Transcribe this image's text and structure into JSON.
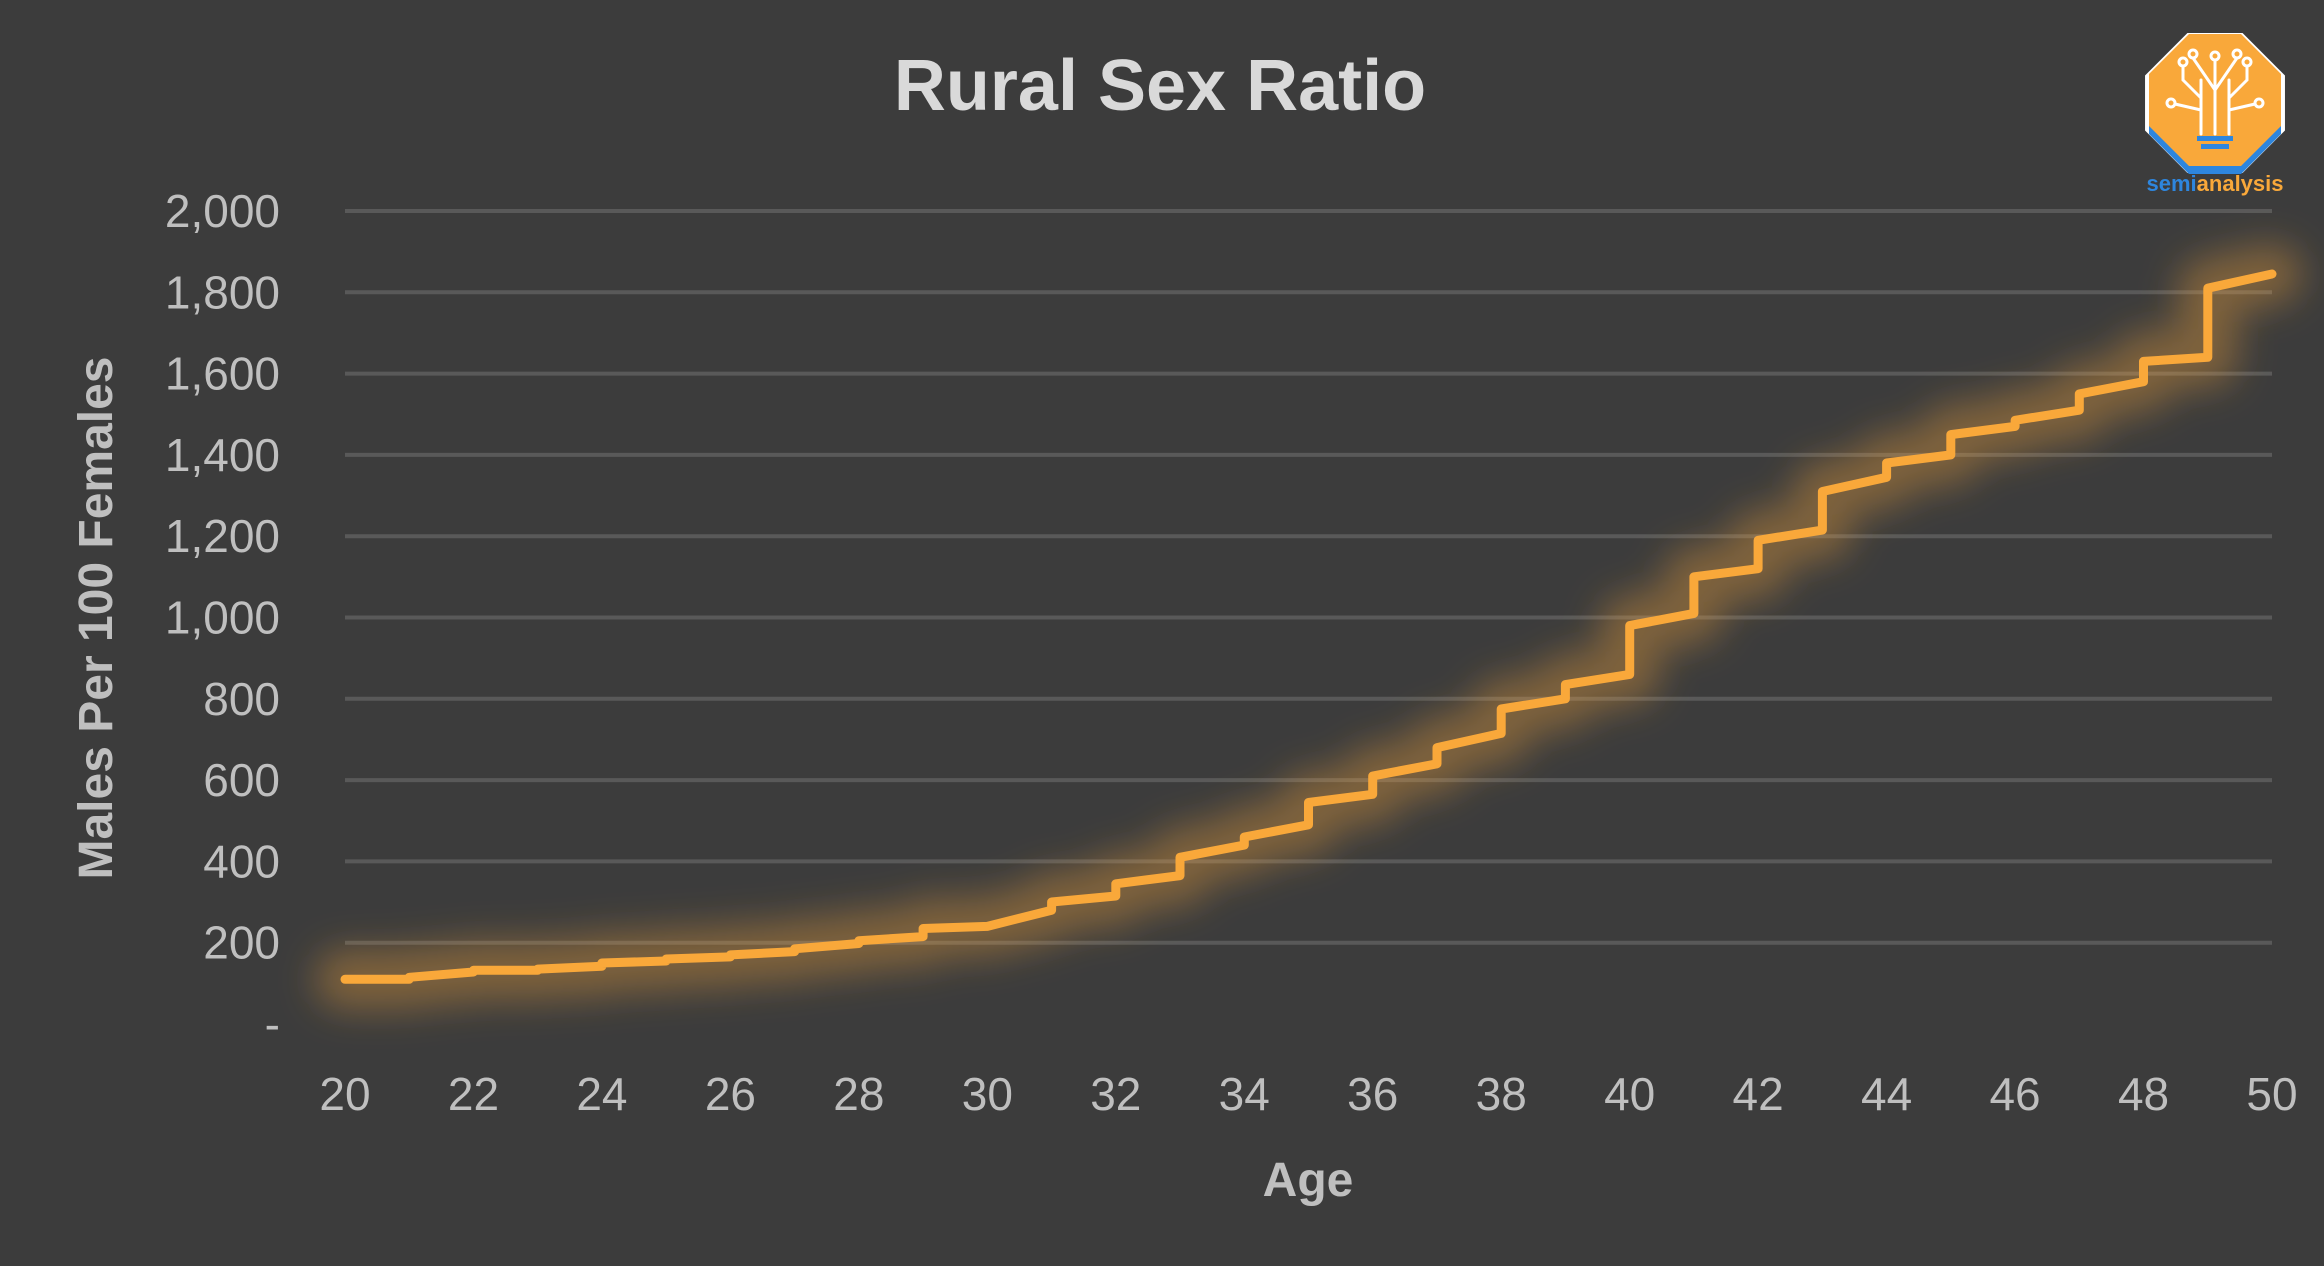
{
  "chart_data": {
    "type": "line",
    "title": "Rural Sex Ratio",
    "xlabel": "Age",
    "ylabel": "Males Per 100 Females",
    "xlim": [
      20,
      50
    ],
    "ylim": [
      0,
      2000
    ],
    "x_ticks": [
      "20",
      "22",
      "24",
      "26",
      "28",
      "30",
      "32",
      "34",
      "36",
      "38",
      "40",
      "42",
      "44",
      "46",
      "48",
      "50"
    ],
    "y_ticks": [
      "-",
      "200",
      "400",
      "600",
      "800",
      "1,000",
      "1,200",
      "1,400",
      "1,600",
      "1,800",
      "2,000"
    ],
    "grid": true,
    "series": [
      {
        "color": "#f9a83a",
        "step": true,
        "points": [
          [
            20,
            110
          ],
          [
            21,
            110
          ],
          [
            21,
            115
          ],
          [
            22,
            128
          ],
          [
            22,
            132
          ],
          [
            23,
            132
          ],
          [
            23,
            135
          ],
          [
            24,
            142
          ],
          [
            24,
            150
          ],
          [
            25,
            155
          ],
          [
            25,
            160
          ],
          [
            26,
            165
          ],
          [
            26,
            170
          ],
          [
            27,
            178
          ],
          [
            27,
            185
          ],
          [
            28,
            198
          ],
          [
            28,
            205
          ],
          [
            29,
            215
          ],
          [
            29,
            235
          ],
          [
            30,
            240
          ],
          [
            31,
            280
          ],
          [
            31,
            300
          ],
          [
            32,
            315
          ],
          [
            32,
            345
          ],
          [
            33,
            365
          ],
          [
            33,
            410
          ],
          [
            34,
            440
          ],
          [
            34,
            460
          ],
          [
            35,
            490
          ],
          [
            35,
            545
          ],
          [
            36,
            565
          ],
          [
            36,
            610
          ],
          [
            37,
            640
          ],
          [
            37,
            680
          ],
          [
            38,
            715
          ],
          [
            38,
            775
          ],
          [
            39,
            800
          ],
          [
            39,
            835
          ],
          [
            40,
            860
          ],
          [
            40,
            980
          ],
          [
            41,
            1010
          ],
          [
            41,
            1100
          ],
          [
            42,
            1120
          ],
          [
            42,
            1190
          ],
          [
            43,
            1215
          ],
          [
            43,
            1310
          ],
          [
            44,
            1345
          ],
          [
            44,
            1380
          ],
          [
            45,
            1400
          ],
          [
            45,
            1450
          ],
          [
            46,
            1470
          ],
          [
            46,
            1485
          ],
          [
            47,
            1510
          ],
          [
            47,
            1550
          ],
          [
            48,
            1580
          ],
          [
            48,
            1630
          ],
          [
            49,
            1640
          ],
          [
            49,
            1810
          ],
          [
            50,
            1845
          ]
        ]
      }
    ]
  },
  "logo": {
    "wordmark_part1": "semi",
    "wordmark_part2": "analysis",
    "color_orange": "#f9a83a",
    "color_blue": "#2e86de"
  }
}
